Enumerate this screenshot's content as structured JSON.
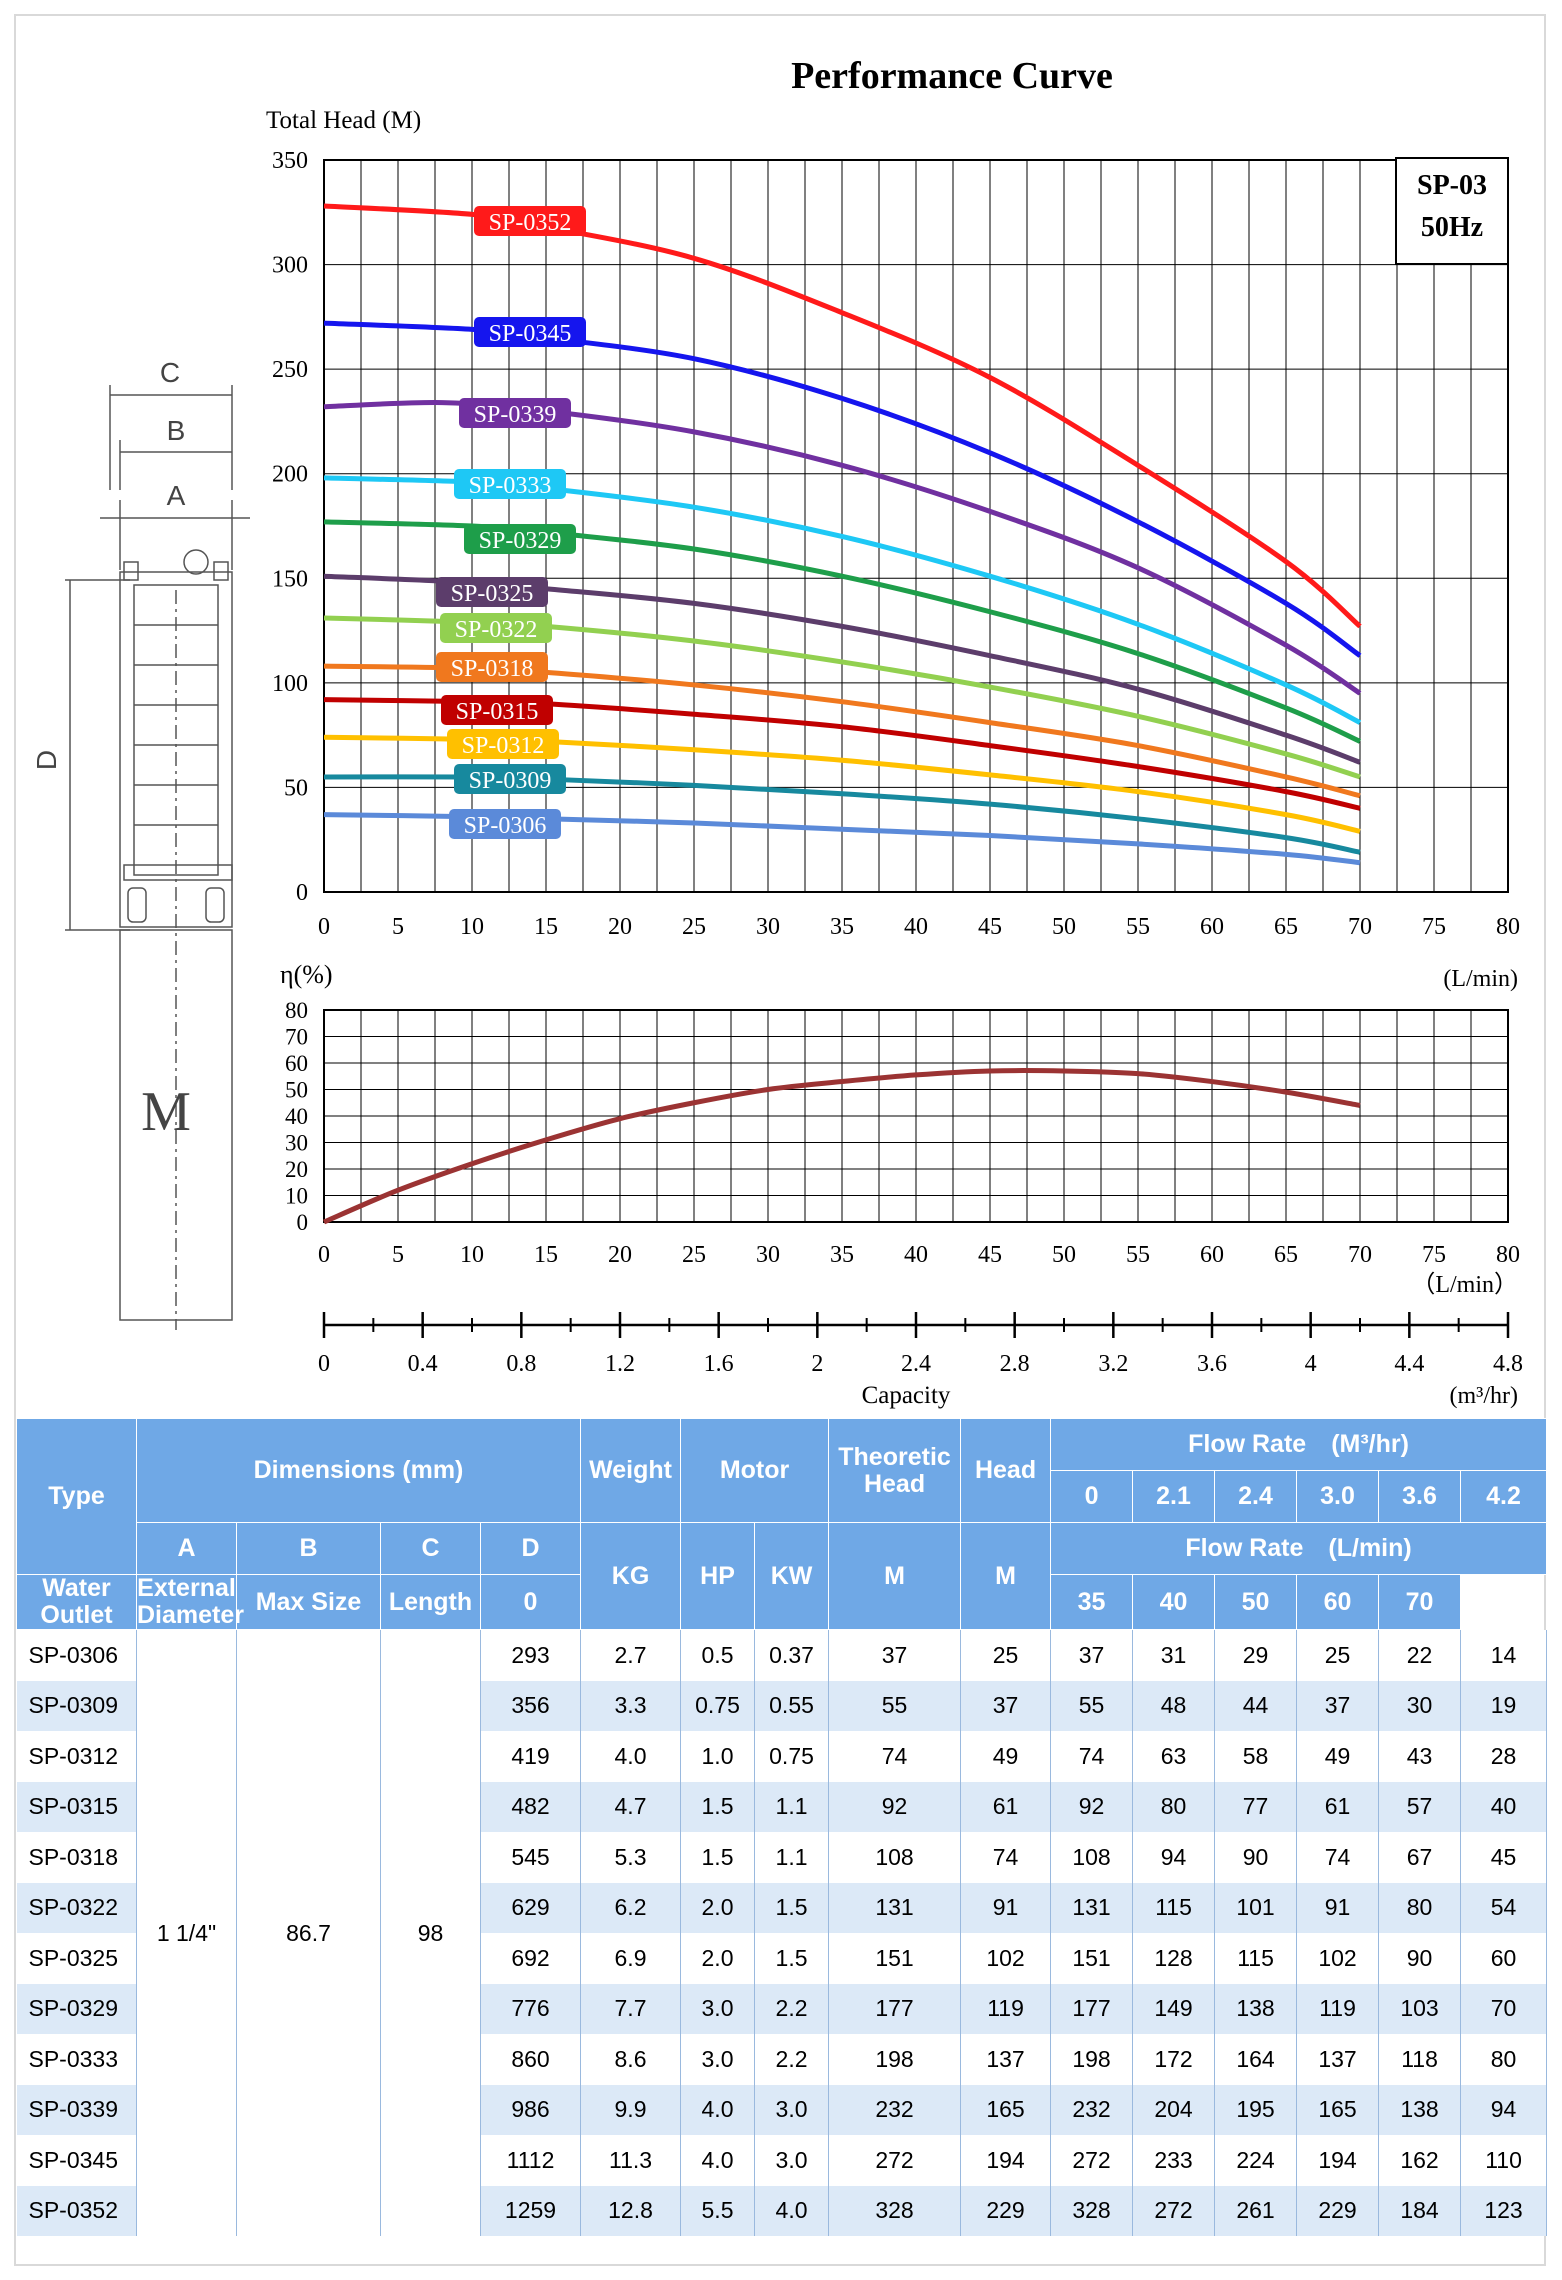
{
  "chart_data": [
    {
      "type": "line",
      "title": "Performance Curve",
      "ylabel": "Total Head (M)",
      "xlabel": "(L/min)",
      "badge": [
        "SP-03",
        "50Hz"
      ],
      "xlim": [
        0,
        80
      ],
      "ylim": [
        0,
        350
      ],
      "xticks": [
        0,
        5,
        10,
        15,
        20,
        25,
        30,
        35,
        40,
        45,
        50,
        55,
        60,
        65,
        70,
        75,
        80
      ],
      "yticks": [
        0,
        50,
        100,
        150,
        200,
        250,
        300,
        350
      ],
      "grid": true,
      "series": [
        {
          "name": "SP-0352",
          "color": "#ff1a1a",
          "x": [
            0,
            10,
            15,
            25,
            35,
            45,
            55,
            65,
            70
          ],
          "y": [
            328,
            324,
            318,
            303,
            277,
            246,
            204,
            158,
            127
          ]
        },
        {
          "name": "SP-0345",
          "color": "#1515ee",
          "x": [
            0,
            10,
            15,
            25,
            35,
            45,
            55,
            65,
            70
          ],
          "y": [
            272,
            269,
            265,
            255,
            236,
            210,
            177,
            138,
            113
          ]
        },
        {
          "name": "SP-0339",
          "color": "#7030a0",
          "x": [
            0,
            8,
            15,
            25,
            35,
            45,
            55,
            65,
            70
          ],
          "y": [
            232,
            234,
            230,
            220,
            204,
            182,
            155,
            118,
            95
          ]
        },
        {
          "name": "SP-0333",
          "color": "#1ec8f5",
          "x": [
            0,
            10,
            15,
            25,
            35,
            45,
            55,
            65,
            70
          ],
          "y": [
            198,
            196,
            193,
            184,
            170,
            151,
            128,
            99,
            81
          ]
        },
        {
          "name": "SP-0329",
          "color": "#1e9e4a",
          "x": [
            0,
            10,
            15,
            25,
            35,
            45,
            55,
            65,
            70
          ],
          "y": [
            177,
            175,
            172,
            164,
            151,
            134,
            114,
            88,
            72
          ]
        },
        {
          "name": "SP-0325",
          "color": "#5c3d6b",
          "x": [
            0,
            10,
            15,
            25,
            35,
            45,
            55,
            65,
            70
          ],
          "y": [
            151,
            148,
            145,
            138,
            127,
            113,
            97,
            75,
            62
          ]
        },
        {
          "name": "SP-0322",
          "color": "#92d050",
          "x": [
            0,
            10,
            15,
            25,
            35,
            45,
            55,
            65,
            70
          ],
          "y": [
            131,
            129,
            127,
            120,
            110,
            98,
            84,
            66,
            55
          ]
        },
        {
          "name": "SP-0318",
          "color": "#f0781e",
          "x": [
            0,
            10,
            15,
            25,
            35,
            45,
            55,
            65,
            70
          ],
          "y": [
            108,
            107,
            105,
            99,
            91,
            81,
            70,
            55,
            46
          ]
        },
        {
          "name": "SP-0315",
          "color": "#c00000",
          "x": [
            0,
            10,
            15,
            25,
            35,
            45,
            55,
            65,
            70
          ],
          "y": [
            92,
            91,
            90,
            85,
            79,
            70,
            60,
            48,
            40
          ]
        },
        {
          "name": "SP-0312",
          "color": "#ffc000",
          "x": [
            0,
            10,
            15,
            25,
            35,
            45,
            55,
            65,
            70
          ],
          "y": [
            74,
            73,
            72,
            68,
            63,
            56,
            48,
            37,
            29
          ]
        },
        {
          "name": "SP-0309",
          "color": "#17899e",
          "x": [
            0,
            10,
            15,
            25,
            35,
            45,
            55,
            65,
            70
          ],
          "y": [
            55,
            55,
            54,
            51,
            47,
            42,
            35,
            26,
            19
          ]
        },
        {
          "name": "SP-0306",
          "color": "#5b8ad9",
          "x": [
            0,
            10,
            15,
            25,
            35,
            45,
            55,
            65,
            70
          ],
          "y": [
            37,
            36,
            35,
            33,
            30,
            27,
            23,
            18,
            14
          ]
        }
      ]
    },
    {
      "type": "line",
      "ylabel": "η(%)",
      "xlabel": "（L/min）",
      "xlim": [
        0,
        80
      ],
      "ylim": [
        0,
        80
      ],
      "xticks": [
        0,
        5,
        10,
        15,
        20,
        25,
        30,
        35,
        40,
        45,
        50,
        55,
        60,
        65,
        70,
        75,
        80
      ],
      "yticks": [
        0,
        10,
        20,
        30,
        40,
        50,
        60,
        70,
        80
      ],
      "grid": true,
      "series": [
        {
          "color": "#9b3333",
          "x": [
            0,
            5,
            10,
            15,
            20,
            25,
            30,
            35,
            40,
            45,
            50,
            55,
            60,
            65,
            70
          ],
          "y": [
            0,
            12,
            22,
            31,
            39,
            45,
            50,
            53,
            55.5,
            57,
            57,
            56,
            53,
            49,
            44
          ]
        }
      ]
    },
    {
      "type": "scale",
      "xlabel": "Capacity",
      "unit": "(m³/hr)",
      "xlim": [
        0,
        4.8
      ],
      "xticks": [
        "0",
        "0.4",
        "0.8",
        "1.2",
        "1.6",
        "2",
        "2.4",
        "2.8",
        "3.2",
        "3.6",
        "4",
        "4.4",
        "4.8"
      ]
    }
  ],
  "diagram": {
    "labels": [
      "C",
      "B",
      "A",
      "D",
      "M"
    ]
  },
  "table": {
    "header": {
      "type": "Type",
      "dimensions": "Dimensions (mm)",
      "weight": "Weight",
      "motor": "Motor",
      "theoretic_head": "Theoretic Head",
      "head": "Head",
      "flow_m3": "Flow Rate　(M³/hr)",
      "flow_m3_values": [
        "0",
        "2.1",
        "2.4",
        "3.0",
        "3.6",
        "4.2"
      ],
      "flow_lmin": "Flow Rate　(L/min)",
      "flow_lmin_values": [
        "0",
        "35",
        "40",
        "50",
        "60",
        "70"
      ],
      "col_a": "A",
      "col_b": "B",
      "col_c": "C",
      "col_d": "D",
      "col_a_sub": "Water Outlet",
      "col_b_sub": "External Diameter",
      "col_c_sub": "Max Size",
      "col_d_sub": "Length",
      "kg": "KG",
      "hp": "HP",
      "kw": "KW",
      "m1": "M",
      "m2": "M"
    },
    "shared": {
      "a": "1 1/4\"",
      "b": "86.7",
      "c": "98"
    },
    "rows": [
      {
        "type": "SP-0306",
        "d": "293",
        "kg": "2.7",
        "hp": "0.5",
        "kw": "0.37",
        "th": "37",
        "head": "25",
        "flows": [
          "37",
          "31",
          "29",
          "25",
          "22",
          "14"
        ]
      },
      {
        "type": "SP-0309",
        "d": "356",
        "kg": "3.3",
        "hp": "0.75",
        "kw": "0.55",
        "th": "55",
        "head": "37",
        "flows": [
          "55",
          "48",
          "44",
          "37",
          "30",
          "19"
        ]
      },
      {
        "type": "SP-0312",
        "d": "419",
        "kg": "4.0",
        "hp": "1.0",
        "kw": "0.75",
        "th": "74",
        "head": "49",
        "flows": [
          "74",
          "63",
          "58",
          "49",
          "43",
          "28"
        ]
      },
      {
        "type": "SP-0315",
        "d": "482",
        "kg": "4.7",
        "hp": "1.5",
        "kw": "1.1",
        "th": "92",
        "head": "61",
        "flows": [
          "92",
          "80",
          "77",
          "61",
          "57",
          "40"
        ]
      },
      {
        "type": "SP-0318",
        "d": "545",
        "kg": "5.3",
        "hp": "1.5",
        "kw": "1.1",
        "th": "108",
        "head": "74",
        "flows": [
          "108",
          "94",
          "90",
          "74",
          "67",
          "45"
        ]
      },
      {
        "type": "SP-0322",
        "d": "629",
        "kg": "6.2",
        "hp": "2.0",
        "kw": "1.5",
        "th": "131",
        "head": "91",
        "flows": [
          "131",
          "115",
          "101",
          "91",
          "80",
          "54"
        ]
      },
      {
        "type": "SP-0325",
        "d": "692",
        "kg": "6.9",
        "hp": "2.0",
        "kw": "1.5",
        "th": "151",
        "head": "102",
        "flows": [
          "151",
          "128",
          "115",
          "102",
          "90",
          "60"
        ]
      },
      {
        "type": "SP-0329",
        "d": "776",
        "kg": "7.7",
        "hp": "3.0",
        "kw": "2.2",
        "th": "177",
        "head": "119",
        "flows": [
          "177",
          "149",
          "138",
          "119",
          "103",
          "70"
        ]
      },
      {
        "type": "SP-0333",
        "d": "860",
        "kg": "8.6",
        "hp": "3.0",
        "kw": "2.2",
        "th": "198",
        "head": "137",
        "flows": [
          "198",
          "172",
          "164",
          "137",
          "118",
          "80"
        ]
      },
      {
        "type": "SP-0339",
        "d": "986",
        "kg": "9.9",
        "hp": "4.0",
        "kw": "3.0",
        "th": "232",
        "head": "165",
        "flows": [
          "232",
          "204",
          "195",
          "165",
          "138",
          "94"
        ]
      },
      {
        "type": "SP-0345",
        "d": "1112",
        "kg": "11.3",
        "hp": "4.0",
        "kw": "3.0",
        "th": "272",
        "head": "194",
        "flows": [
          "272",
          "233",
          "224",
          "194",
          "162",
          "110"
        ]
      },
      {
        "type": "SP-0352",
        "d": "1259",
        "kg": "12.8",
        "hp": "5.5",
        "kw": "4.0",
        "th": "328",
        "head": "229",
        "flows": [
          "328",
          "272",
          "261",
          "229",
          "184",
          "123"
        ]
      }
    ]
  }
}
